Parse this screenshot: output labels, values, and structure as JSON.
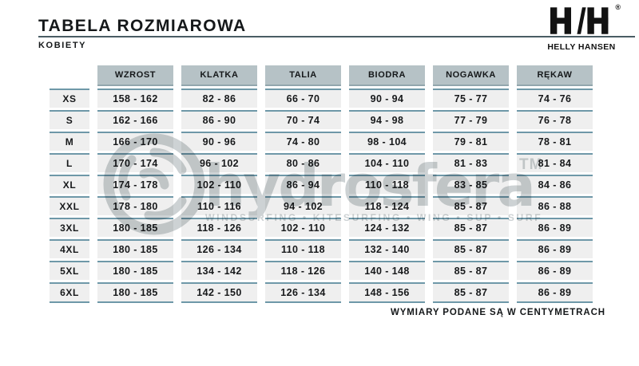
{
  "header": {
    "title": "TABELA ROZMIAROWA",
    "subtitle": "KOBIETY",
    "logo": {
      "monogram": "HH",
      "registered": "®",
      "name": "HELLY HANSEN"
    }
  },
  "table": {
    "columns": [
      "WZROST",
      "KLATKA",
      "TALIA",
      "BIODRA",
      "NOGAWKA",
      "RĘKAW"
    ],
    "rows": [
      {
        "size": "XS",
        "values": [
          "158 - 162",
          "82 - 86",
          "66 - 70",
          "90 - 94",
          "75 - 77",
          "74 - 76"
        ]
      },
      {
        "size": "S",
        "values": [
          "162 - 166",
          "86 - 90",
          "70 - 74",
          "94 - 98",
          "77 - 79",
          "76 - 78"
        ]
      },
      {
        "size": "M",
        "values": [
          "166 - 170",
          "90 - 96",
          "74 - 80",
          "98 - 104",
          "79 - 81",
          "78 - 81"
        ]
      },
      {
        "size": "L",
        "values": [
          "170 - 174",
          "96 - 102",
          "80 - 86",
          "104 - 110",
          "81 - 83",
          "81 - 84"
        ]
      },
      {
        "size": "XL",
        "values": [
          "174 - 178",
          "102 - 110",
          "86 - 94",
          "110 - 118",
          "83 - 85",
          "84 - 86"
        ]
      },
      {
        "size": "XXL",
        "values": [
          "178 - 180",
          "110 - 116",
          "94 - 102",
          "118 - 124",
          "85 - 87",
          "86 - 88"
        ]
      },
      {
        "size": "3XL",
        "values": [
          "180 - 185",
          "118 - 126",
          "102 - 110",
          "124 - 132",
          "85 - 87",
          "86 - 89"
        ]
      },
      {
        "size": "4XL",
        "values": [
          "180 - 185",
          "126 - 134",
          "110 - 118",
          "132 - 140",
          "85 - 87",
          "86 - 89"
        ]
      },
      {
        "size": "5XL",
        "values": [
          "180 - 185",
          "134 - 142",
          "118 - 126",
          "140 - 148",
          "85 - 87",
          "86 - 89"
        ]
      },
      {
        "size": "6XL",
        "values": [
          "180 - 185",
          "142 - 150",
          "126 - 134",
          "148 - 156",
          "85 - 87",
          "86 - 89"
        ]
      }
    ]
  },
  "footer": {
    "note": "WYMIARY PODANE SĄ W CENTYMETRACH"
  },
  "watermark": {
    "brand": "hydrosfera",
    "tm": "TM",
    "tagline": "WINDSURFING • KITESURFING • WING • SUP • SURF"
  },
  "colors": {
    "header_cell_bg": "#b6c2c6",
    "header_cell_border": "#92a6ad",
    "cell_bg": "#efefef",
    "cell_border": "#6e98a8",
    "title_rule": "#4a5c64",
    "watermark_gray": "#cdd2d4",
    "text": "#15181a"
  }
}
